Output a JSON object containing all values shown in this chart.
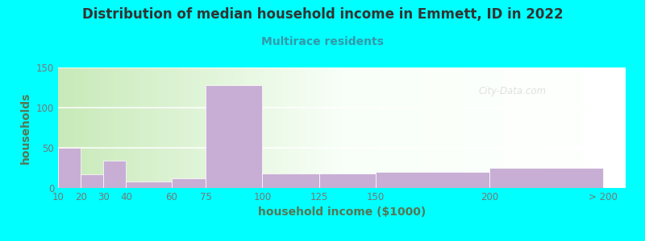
{
  "title": "Distribution of median household income in Emmett, ID in 2022",
  "subtitle": "Multirace residents",
  "xlabel": "household income ($1000)",
  "ylabel": "households",
  "background_color": "#00ffff",
  "bar_color": "#c8aed4",
  "bar_edge_color": "#ffffff",
  "title_color": "#333333",
  "subtitle_color": "#3399aa",
  "axis_label_color": "#557755",
  "tick_color": "#777777",
  "ylim": [
    0,
    150
  ],
  "yticks": [
    0,
    50,
    100,
    150
  ],
  "tick_positions": [
    10,
    20,
    30,
    40,
    60,
    75,
    100,
    125,
    150,
    200,
    250
  ],
  "tick_labels": [
    "10",
    "20",
    "30",
    "40",
    "60",
    "75",
    "100",
    "125",
    "150",
    "200",
    "> 200"
  ],
  "bar_lefts": [
    10,
    20,
    30,
    40,
    60,
    75,
    100,
    125,
    150,
    200
  ],
  "bar_widths": [
    10,
    10,
    10,
    20,
    15,
    25,
    25,
    25,
    50,
    50
  ],
  "values": [
    50,
    17,
    34,
    8,
    12,
    128,
    18,
    18,
    20,
    25
  ],
  "xlim": [
    10,
    260
  ],
  "watermark": "City-Data.com"
}
